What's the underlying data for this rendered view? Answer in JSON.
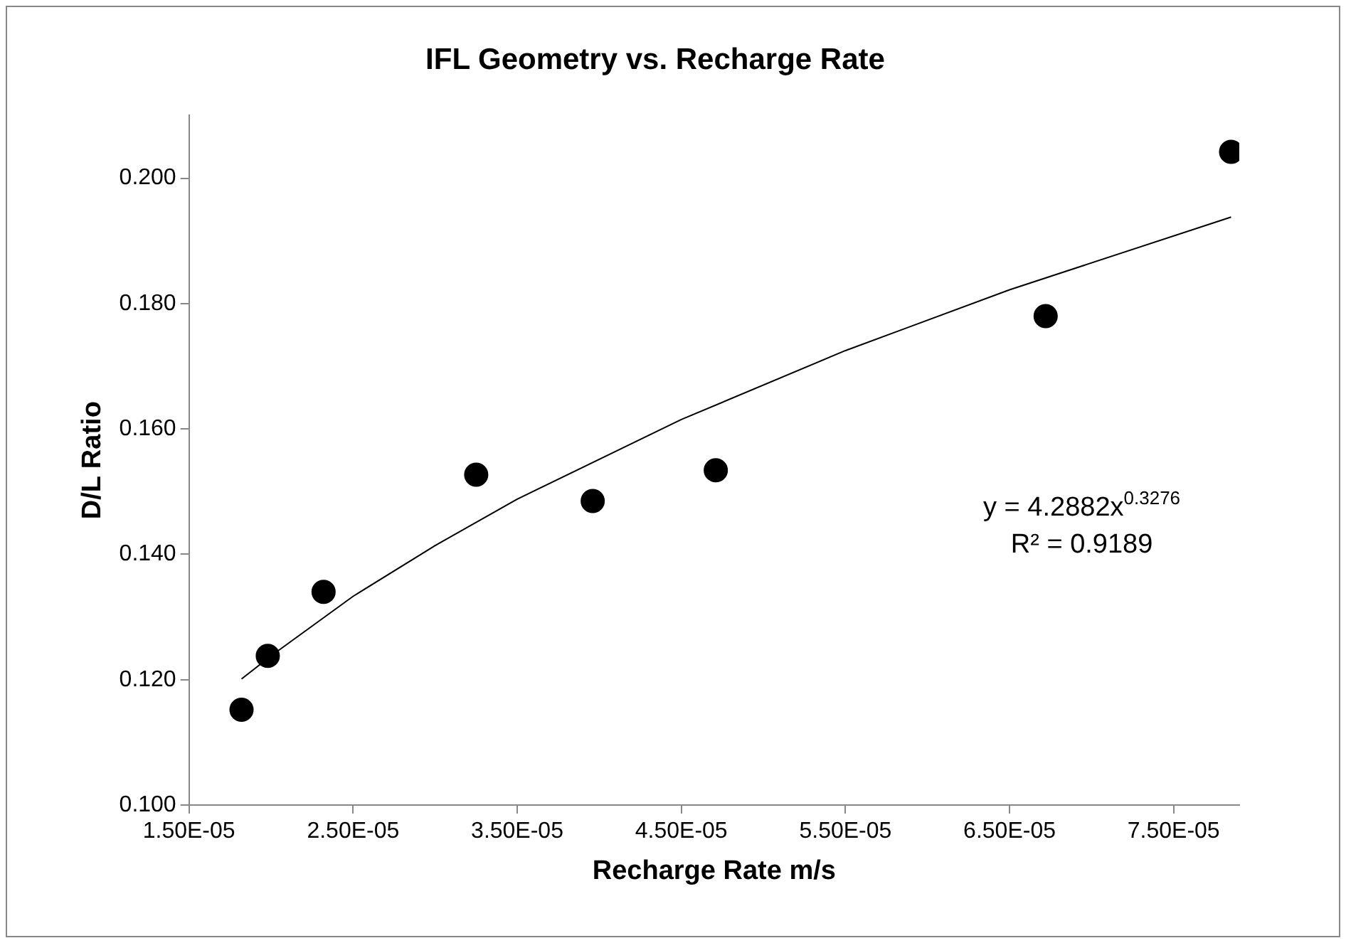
{
  "chart_data": {
    "type": "scatter",
    "title": "IFL Geometry vs. Recharge Rate",
    "xlabel": "Recharge Rate m/s",
    "ylabel": "D/L Ratio",
    "x": [
      1.82e-05,
      1.98e-05,
      2.32e-05,
      3.25e-05,
      3.96e-05,
      4.71e-05,
      6.72e-05,
      7.85e-05
    ],
    "series": [
      {
        "type": "scatter",
        "color": "#000000",
        "marker": "circle",
        "values": [
          0.1152,
          0.1238,
          0.134,
          0.1527,
          0.1485,
          0.1534,
          0.178,
          0.2042
        ]
      },
      {
        "type": "line",
        "color": "#000000",
        "marker": "none",
        "x": [
          1.82e-05,
          2e-05,
          2.5e-05,
          3e-05,
          3.5e-05,
          4.5e-05,
          5.5e-05,
          6.5e-05,
          7.85e-05
        ],
        "values": [
          0.1201,
          0.1238,
          0.1333,
          0.1414,
          0.1488,
          0.1615,
          0.1725,
          0.1822,
          0.1938
        ]
      }
    ],
    "xlim": [
      1.5e-05,
      7.9e-05
    ],
    "xticks": [
      {
        "value": 1.5e-05,
        "label": "1.50E-05"
      },
      {
        "value": 2.5e-05,
        "label": "2.50E-05"
      },
      {
        "value": 3.5e-05,
        "label": "3.50E-05"
      },
      {
        "value": 4.5e-05,
        "label": "4.50E-05"
      },
      {
        "value": 5.5e-05,
        "label": "5.50E-05"
      },
      {
        "value": 6.5e-05,
        "label": "6.50E-05"
      },
      {
        "value": 7.5e-05,
        "label": "7.50E-05"
      }
    ],
    "ylim": [
      0.1,
      0.21
    ],
    "yticks": [
      {
        "value": 0.1,
        "label": "0.100"
      },
      {
        "value": 0.12,
        "label": "0.120"
      },
      {
        "value": 0.14,
        "label": "0.140"
      },
      {
        "value": 0.16,
        "label": "0.160"
      },
      {
        "value": 0.18,
        "label": "0.180"
      },
      {
        "value": 0.2,
        "label": "0.200"
      }
    ],
    "annotations": [
      "y = 4.2882x$^{0.3276}$",
      "R² = 0.9189"
    ],
    "grid": false,
    "legend": false
  }
}
